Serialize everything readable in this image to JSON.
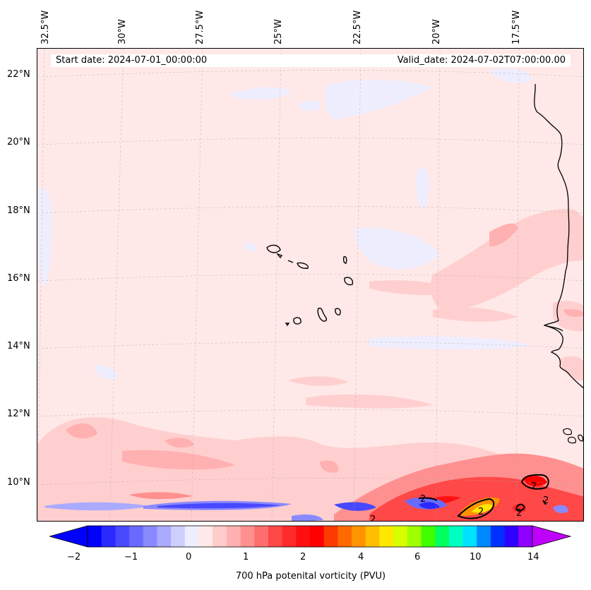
{
  "map": {
    "start_date": "Start date: 2024-07-01_00:00:00",
    "valid_date": "Valid_date: 2024-07-02T07:00:00.00",
    "lon_labels": [
      "32.5°W",
      "30°W",
      "27.5°W",
      "25°W",
      "22.5°W",
      "20°W",
      "17.5°W"
    ],
    "lat_labels": [
      "22°N",
      "20°N",
      "18°N",
      "16°N",
      "14°N",
      "12°N",
      "10°N"
    ],
    "contour_labels": [
      "2",
      "2",
      "2",
      "2",
      "2",
      "2"
    ],
    "colors": {
      "background": "#ffe8e8",
      "light_pink": "#ffcfcf",
      "pink": "#ffb0b0",
      "light_blue": "#eeeeff",
      "blue": "#5555ff",
      "red": "#ff2020",
      "orange": "#ff9900"
    }
  },
  "colorbar": {
    "label": "700 hPa potenital vorticity (PVU)",
    "tick_labels": [
      "−2",
      "−1",
      "0",
      "1",
      "2",
      "4",
      "6",
      "10",
      "14"
    ],
    "colors": [
      "#0000ff",
      "#2a2aff",
      "#4848ff",
      "#6a6aff",
      "#8a8aff",
      "#aaaaff",
      "#cfcfff",
      "#eeeeff",
      "#ffe8e8",
      "#ffcccc",
      "#ffb0b0",
      "#ff9090",
      "#ff6e6e",
      "#ff4848",
      "#ff2a2a",
      "#ff1010",
      "#ff0000",
      "#ff3a00",
      "#ff6a00",
      "#ff9400",
      "#ffbe00",
      "#ffe800",
      "#d8ff00",
      "#a0ff00",
      "#40ff00",
      "#00ff60",
      "#00ffc0",
      "#00e0ff",
      "#0088ff",
      "#0030ff",
      "#3000ff",
      "#9000ff"
    ],
    "under_color": "#0000ff",
    "over_color": "#c000ff"
  }
}
